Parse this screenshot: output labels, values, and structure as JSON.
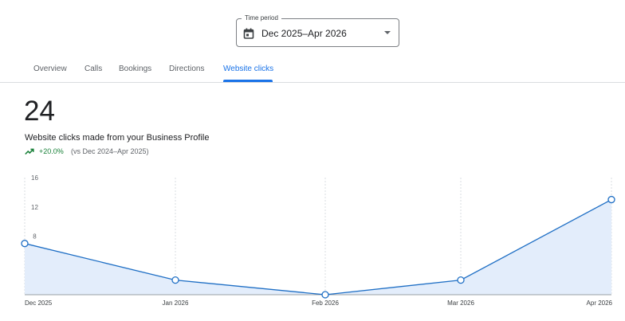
{
  "time_period": {
    "label": "Time period",
    "value": "Dec 2025–Apr 2026",
    "icon": "calendar-icon"
  },
  "tabs": [
    {
      "label": "Overview",
      "active": false
    },
    {
      "label": "Calls",
      "active": false
    },
    {
      "label": "Bookings",
      "active": false
    },
    {
      "label": "Directions",
      "active": false
    },
    {
      "label": "Website clicks",
      "active": true
    }
  ],
  "metric": {
    "value": "24",
    "description": "Website clicks made from your Business Profile",
    "change": "+20.0%",
    "comparison": "(vs Dec 2024–Apr 2025)",
    "trend_icon": "trending-up-icon"
  },
  "colors": {
    "accent": "#1a73e8",
    "line": "#1f6fc5",
    "area": "#e3edfb",
    "positive": "#188038"
  },
  "chart_data": {
    "type": "area",
    "categories": [
      "Dec 2025",
      "Jan 2026",
      "Feb 2026",
      "Mar 2026",
      "Apr 2026"
    ],
    "values": [
      7,
      2,
      0,
      2,
      13
    ],
    "y_ticks": [
      4,
      8,
      12,
      16
    ],
    "ylim": [
      0,
      16
    ],
    "grid": "vertical dashed"
  }
}
